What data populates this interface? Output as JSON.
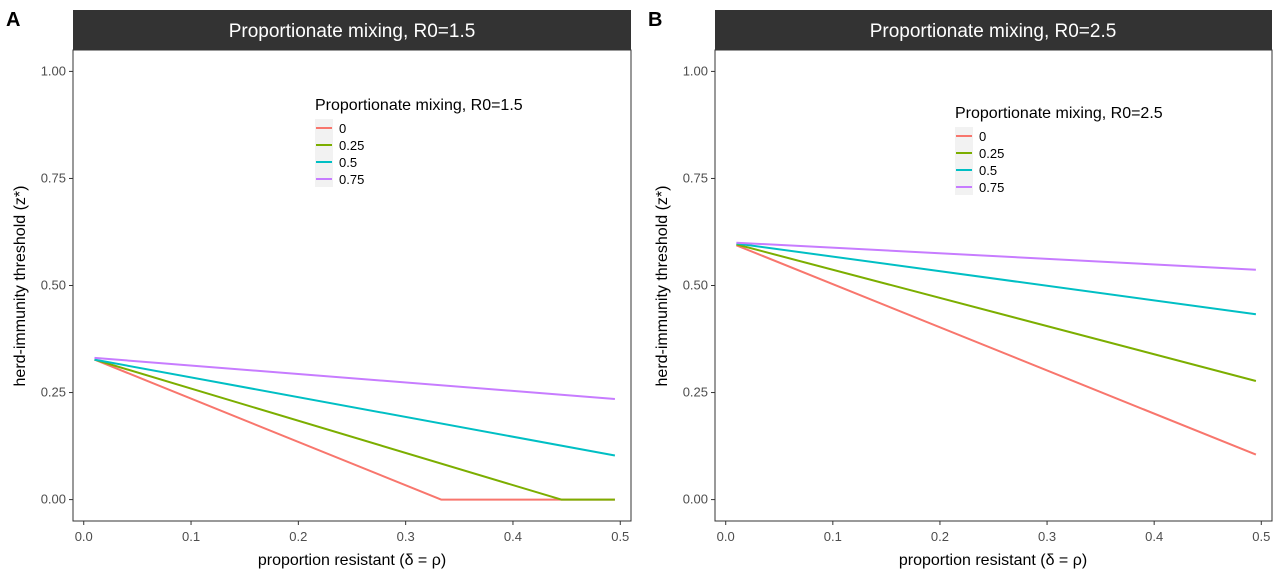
{
  "chart_data": [
    {
      "panel_label": "A",
      "type": "line",
      "title": "Proportionate mixing, R0=1.5",
      "xlabel": "proportion resistant (δ = ρ)",
      "ylabel": "herd-immunity threshold (z*)",
      "xlim": [
        -0.01,
        0.51
      ],
      "ylim": [
        -0.05,
        1.05
      ],
      "xticks": [
        0.0,
        0.1,
        0.2,
        0.3,
        0.4,
        0.5
      ],
      "xtick_labels": [
        "0.0",
        "0.1",
        "0.2",
        "0.3",
        "0.4",
        "0.5"
      ],
      "yticks": [
        0.0,
        0.25,
        0.5,
        0.75,
        1.0
      ],
      "ytick_labels": [
        "0.00",
        "0.25",
        "0.50",
        "0.75",
        "1.00"
      ],
      "grid": false,
      "legend_title": "Proportionate mixing, R0=1.5",
      "legend_position": "top-right",
      "series": [
        {
          "name": "0",
          "color": "#F8766D",
          "x": [
            0.01,
            0.333,
            0.495
          ],
          "y": [
            0.327,
            0.0,
            0.0
          ]
        },
        {
          "name": "0.25",
          "color": "#7CAE00",
          "x": [
            0.01,
            0.445,
            0.495
          ],
          "y": [
            0.327,
            0.0,
            0.0
          ]
        },
        {
          "name": "0.5",
          "color": "#00BFC4",
          "x": [
            0.01,
            0.495
          ],
          "y": [
            0.327,
            0.103
          ]
        },
        {
          "name": "0.75",
          "color": "#C77CFF",
          "x": [
            0.01,
            0.495
          ],
          "y": [
            0.331,
            0.235
          ]
        }
      ]
    },
    {
      "panel_label": "B",
      "type": "line",
      "title": "Proportionate mixing, R0=2.5",
      "xlabel": "proportion resistant (δ = ρ)",
      "ylabel": "herd-immunity threshold (z*)",
      "xlim": [
        -0.01,
        0.51
      ],
      "ylim": [
        -0.05,
        1.05
      ],
      "xticks": [
        0.0,
        0.1,
        0.2,
        0.3,
        0.4,
        0.5
      ],
      "xtick_labels": [
        "0.0",
        "0.1",
        "0.2",
        "0.3",
        "0.4",
        "0.5"
      ],
      "yticks": [
        0.0,
        0.25,
        0.5,
        0.75,
        1.0
      ],
      "ytick_labels": [
        "0.00",
        "0.25",
        "0.50",
        "0.75",
        "1.00"
      ],
      "grid": false,
      "legend_title": "Proportionate mixing, R0=2.5",
      "legend_position": "top-right",
      "series": [
        {
          "name": "0",
          "color": "#F8766D",
          "x": [
            0.01,
            0.495
          ],
          "y": [
            0.594,
            0.105
          ]
        },
        {
          "name": "0.25",
          "color": "#7CAE00",
          "x": [
            0.01,
            0.495
          ],
          "y": [
            0.596,
            0.277
          ]
        },
        {
          "name": "0.5",
          "color": "#00BFC4",
          "x": [
            0.01,
            0.495
          ],
          "y": [
            0.598,
            0.433
          ]
        },
        {
          "name": "0.75",
          "color": "#C77CFF",
          "x": [
            0.01,
            0.495
          ],
          "y": [
            0.6,
            0.537
          ]
        }
      ]
    }
  ]
}
